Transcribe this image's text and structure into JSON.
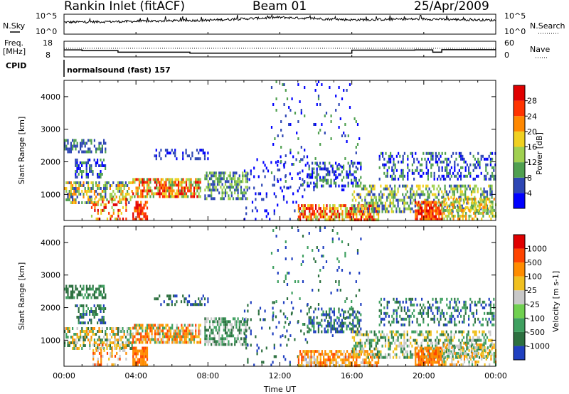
{
  "header": {
    "station": "Rankin Inlet (fitACF)",
    "beam": "Beam 01",
    "date": "25/Apr/2009"
  },
  "chart_data": [
    {
      "type": "line",
      "panel": "nsky-nsearch",
      "left_label": "N.Sky",
      "right_label": "N.Search",
      "left_ticks": [
        "10^5",
        "10^0"
      ],
      "right_ticks": [
        "10^5",
        "10^0"
      ],
      "x": [
        "00:00",
        "04:00",
        "08:00",
        "12:00",
        "16:00",
        "20:00",
        "00:00"
      ],
      "series": [
        {
          "name": "N.Sky",
          "values": [
            3.0,
            3.2,
            3.5,
            4.2,
            3.6,
            3.8,
            3.5
          ]
        }
      ]
    },
    {
      "type": "line",
      "panel": "freq-nave",
      "left_label_1": "Freq.",
      "left_label_2": "[MHz]",
      "right_label": "Nave",
      "left_ticks": [
        "18",
        "8"
      ],
      "right_ticks": [
        "60",
        "0"
      ],
      "ylim_left": [
        8,
        18
      ],
      "x": [
        "00:00",
        "01:00",
        "03:00",
        "07:00",
        "08:00",
        "11:00",
        "13:00",
        "15:00",
        "16:00",
        "19:30",
        "20:30",
        "21:00",
        "24:00"
      ],
      "series": [
        {
          "name": "Freq.",
          "values": [
            12.5,
            12.0,
            11.0,
            10.4,
            10.4,
            10.4,
            10.4,
            10.4,
            12.3,
            12.5,
            11.0,
            12.6,
            12.6
          ]
        },
        {
          "name": "Nave",
          "values": [
            33,
            33,
            33,
            33,
            33,
            33,
            33,
            33,
            33,
            33,
            33,
            33,
            33
          ]
        }
      ]
    },
    {
      "type": "heatmap",
      "panel": "power",
      "ylabel": "Slant Range [km]",
      "xlabel": "Time UT",
      "ylim": [
        200,
        4500
      ],
      "yticks": [
        "1000",
        "2000",
        "3000",
        "4000"
      ],
      "xticks": [
        "00:00",
        "04:00",
        "08:00",
        "12:00",
        "16:00",
        "20:00",
        "00:00"
      ],
      "colorbar_label": "Power [dB]",
      "colorbar_ticks": [
        "28",
        "24",
        "20",
        "16",
        "12",
        "8",
        "4"
      ],
      "colors": [
        "#0000ff",
        "#2d46b4",
        "#50a050",
        "#a0d050",
        "#f0d020",
        "#ff8800",
        "#ff3300",
        "#e00000"
      ]
    },
    {
      "type": "heatmap",
      "panel": "velocity",
      "ylabel": "Slant Range [km]",
      "xlabel": "Time UT",
      "ylim": [
        200,
        4500
      ],
      "yticks": [
        "1000",
        "2000",
        "3000",
        "4000"
      ],
      "xticks": [
        "00:00",
        "04:00",
        "08:00",
        "12:00",
        "16:00",
        "20:00",
        "00:00"
      ],
      "colorbar_label": "Velocity [m s-1]",
      "colorbar_ticks": [
        "1000",
        "500",
        "100",
        "25",
        "-25",
        "-100",
        "-500",
        "-1000"
      ],
      "colors": [
        "#2040c0",
        "#2d7040",
        "#3fa060",
        "#70d050",
        "#c8c8c8",
        "#f0c020",
        "#ff8c00",
        "#ff4400",
        "#e00000"
      ]
    }
  ],
  "cpid": {
    "label": "CPID",
    "value": "normalsound (fast) 157"
  },
  "axes": {
    "xlabel": "Time UT",
    "xticks": [
      "00:00",
      "04:00",
      "08:00",
      "12:00",
      "16:00",
      "20:00",
      "00:00"
    ]
  }
}
